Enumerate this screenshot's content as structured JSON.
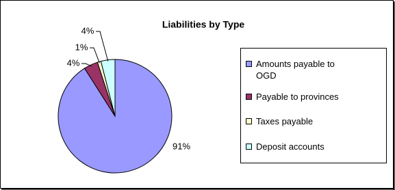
{
  "chart_data": {
    "type": "pie",
    "title": "Liabilities by Type",
    "categories": [
      "Amounts payable to OGD",
      "Payable to provinces",
      "Taxes payable",
      "Deposit accounts"
    ],
    "values": [
      91,
      4,
      1,
      4
    ],
    "value_labels": [
      "91%",
      "4%",
      "1%",
      "4%"
    ],
    "colors": [
      "#9999ff",
      "#993366",
      "#ffffcc",
      "#ccffff"
    ],
    "legend": "right"
  }
}
